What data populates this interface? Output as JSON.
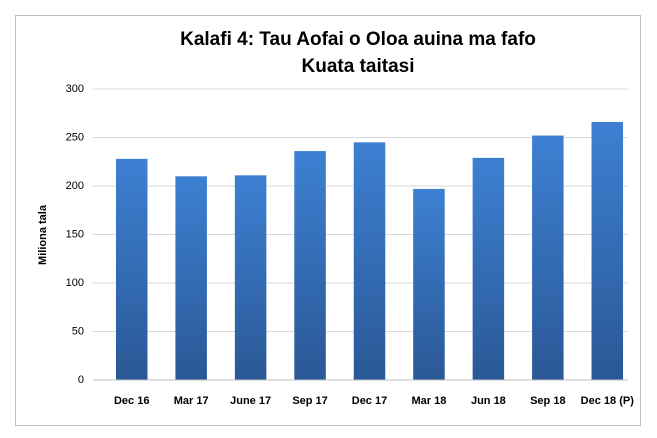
{
  "chart_data": {
    "type": "bar",
    "title": "Kalafi 4: Tau Aofai o Oloa auina ma fafo",
    "subtitle": "Kuata taitasi",
    "y_label": "Miliona tala",
    "categories": [
      "Dec 16",
      "Mar 17",
      "June 17",
      "Sep 17",
      "Dec 17",
      "Mar 18",
      "Jun 18",
      "Sep 18",
      "Dec 18 (P)"
    ],
    "values": [
      228,
      210,
      211,
      236,
      245,
      197,
      229,
      252,
      266
    ],
    "color": "#3a7bd0",
    "ylim": [
      0,
      300
    ],
    "yticks": [
      0,
      50,
      100,
      150,
      200,
      250,
      300
    ],
    "grid": true
  }
}
